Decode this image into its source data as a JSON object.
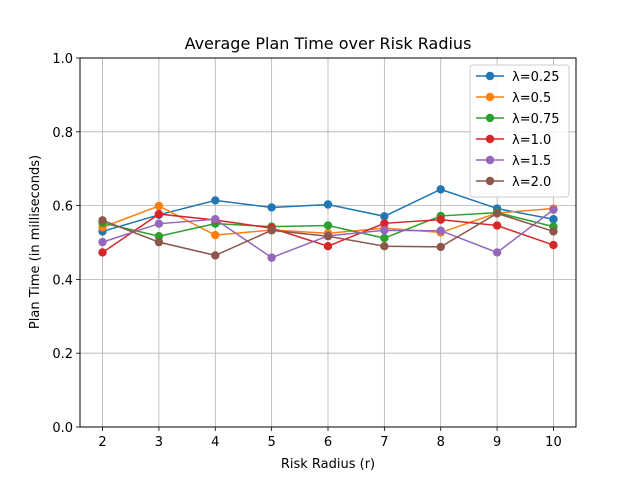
{
  "chart_data": {
    "type": "line",
    "title": "Average Plan Time over Risk Radius",
    "xlabel": "Risk Radius (r)",
    "ylabel": "Plan Time (in milliseconds)",
    "x": [
      2,
      3,
      4,
      5,
      6,
      7,
      8,
      9,
      10
    ],
    "xlim": [
      1.6,
      10.4
    ],
    "ylim": [
      0.0,
      1.0
    ],
    "xticks": [
      "2",
      "3",
      "4",
      "5",
      "6",
      "7",
      "8",
      "9",
      "10"
    ],
    "yticks": [
      "0.0",
      "0.2",
      "0.4",
      "0.6",
      "0.8",
      "1.0"
    ],
    "grid": true,
    "legend_position": "top-right",
    "series": [
      {
        "name": "λ=0.25",
        "color": "#1f77b4",
        "values": [
          0.53,
          0.575,
          0.614,
          0.595,
          0.603,
          0.571,
          0.644,
          0.592,
          0.563
        ]
      },
      {
        "name": "λ=0.5",
        "color": "#ff7f0e",
        "values": [
          0.541,
          0.599,
          0.52,
          0.534,
          0.525,
          0.539,
          0.527,
          0.58,
          0.592
        ]
      },
      {
        "name": "λ=0.75",
        "color": "#2ca02c",
        "values": [
          0.553,
          0.517,
          0.551,
          0.543,
          0.546,
          0.512,
          0.572,
          0.581,
          0.543
        ]
      },
      {
        "name": "λ=1.0",
        "color": "#d62728",
        "values": [
          0.473,
          0.577,
          0.561,
          0.539,
          0.49,
          0.552,
          0.562,
          0.546,
          0.493
        ]
      },
      {
        "name": "λ=1.5",
        "color": "#9467bd",
        "values": [
          0.501,
          0.551,
          0.563,
          0.459,
          0.518,
          0.533,
          0.532,
          0.473,
          0.589
        ]
      },
      {
        "name": "λ=2.0",
        "color": "#8c564b",
        "values": [
          0.56,
          0.501,
          0.465,
          0.533,
          0.517,
          0.49,
          0.488,
          0.579,
          0.53
        ]
      }
    ]
  }
}
